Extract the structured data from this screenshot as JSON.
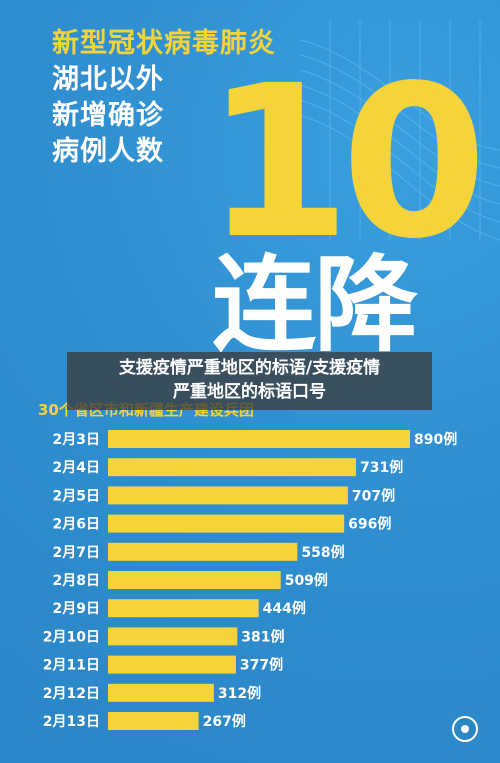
{
  "poster": {
    "headline_1": "新型冠状病毒肺炎",
    "headline_2": "湖北以外",
    "headline_3": "新增确诊",
    "headline_4": "病例人数",
    "big_number": "10",
    "big_words": "连降",
    "overlay_line_1": "支援疫情严重地区的标语/支援疫情",
    "overlay_line_2": "严重地区的标语口号",
    "subtitle": "30个省区市和新疆生产建设兵团"
  },
  "colors": {
    "background": "#2f8fd0",
    "bar": "#f5d33a",
    "accent": "#f5d33a",
    "text": "#ffffff"
  },
  "chart_data": {
    "type": "bar",
    "orientation": "horizontal",
    "title": "30个省区市和新疆生产建设兵团",
    "categories": [
      "2月3日",
      "2月4日",
      "2月5日",
      "2月6日",
      "2月7日",
      "2月8日",
      "2月9日",
      "2月10日",
      "2月11日",
      "2月12日",
      "2月13日"
    ],
    "values": [
      890,
      731,
      707,
      696,
      558,
      509,
      444,
      381,
      377,
      312,
      267
    ],
    "value_labels": [
      "890例",
      "731例",
      "707例",
      "696例",
      "558例",
      "509例",
      "444例",
      "381例",
      "377例",
      "312例",
      "267例"
    ],
    "xlim": [
      0,
      890
    ],
    "grid": false,
    "legend": "none"
  }
}
